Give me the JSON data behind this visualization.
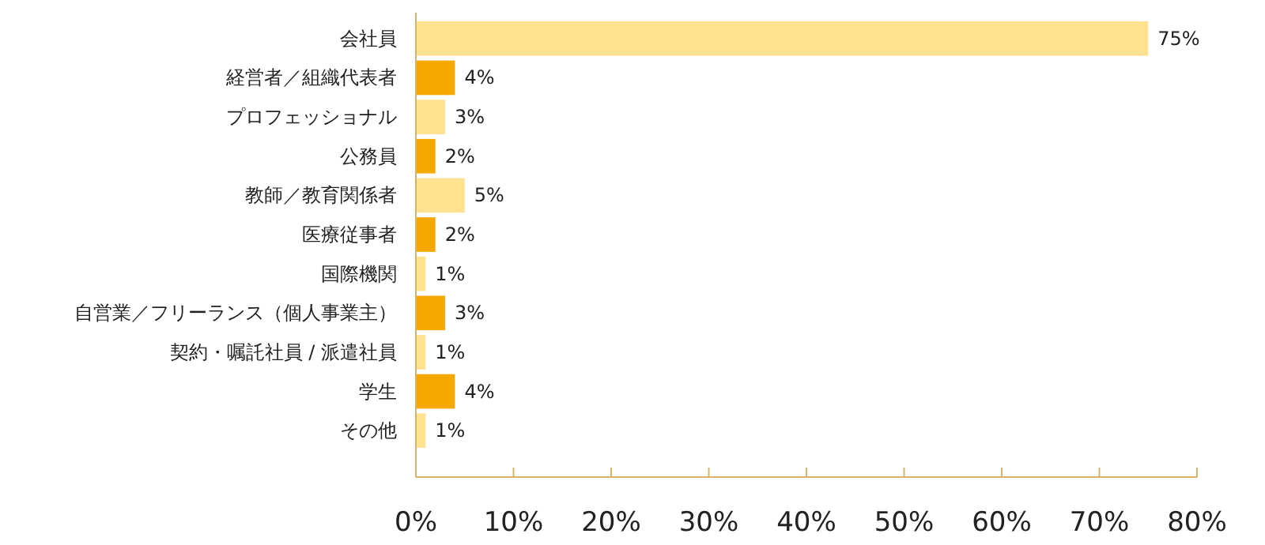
{
  "chart_data": {
    "type": "bar",
    "orientation": "horizontal",
    "categories": [
      "会社員",
      "経営者／組織代表者",
      "プロフェッショナル",
      "公務員",
      "教師／教育関係者",
      "医療従事者",
      "国際機関",
      "自営業／フリーランス（個人事業主）",
      "契約・嘱託社員 / 派遣社員",
      "学生",
      "その他"
    ],
    "values": [
      75,
      4,
      3,
      2,
      5,
      2,
      1,
      3,
      1,
      4,
      1
    ],
    "colors": [
      "#ffe28f",
      "#f5a800",
      "#ffe28f",
      "#f5a800",
      "#ffe28f",
      "#f5a800",
      "#ffe28f",
      "#f5a800",
      "#ffe28f",
      "#f5a800",
      "#ffe28f"
    ],
    "value_labels": [
      "75%",
      "4%",
      "3%",
      "2%",
      "5%",
      "2%",
      "1%",
      "3%",
      "1%",
      "4%",
      "1%"
    ],
    "xlim": [
      0,
      80
    ],
    "xticks": [
      {
        "value": 0,
        "label": "0%"
      },
      {
        "value": 10,
        "label": "10%"
      },
      {
        "value": 20,
        "label": "20%"
      },
      {
        "value": 30,
        "label": "30%"
      },
      {
        "value": 40,
        "label": "40%"
      },
      {
        "value": 50,
        "label": "50%"
      },
      {
        "value": 60,
        "label": "60%"
      },
      {
        "value": 70,
        "label": "70%"
      },
      {
        "value": 80,
        "label": "80%"
      }
    ],
    "grid": false
  }
}
